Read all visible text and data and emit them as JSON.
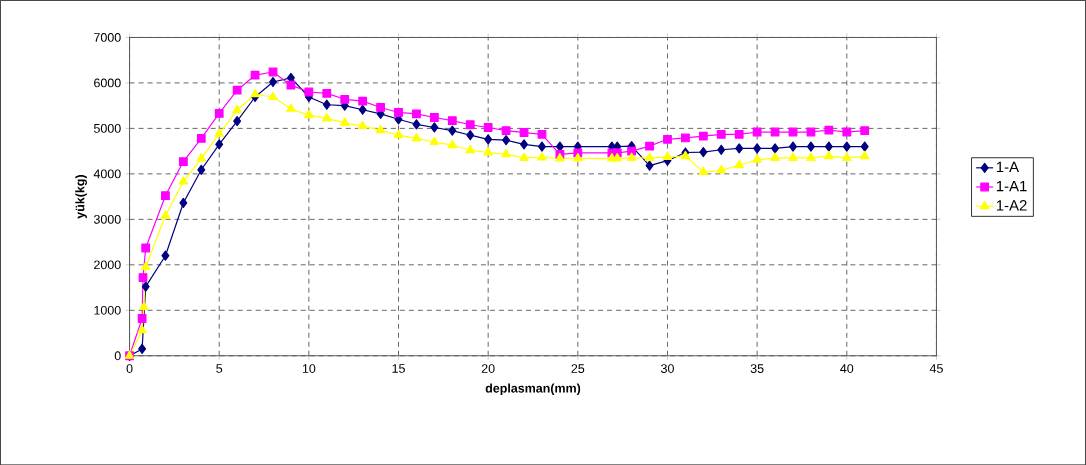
{
  "chart_data": {
    "type": "line",
    "xlabel": "deplasman(mm)",
    "ylabel": "yük(kg)",
    "xlim": [
      0,
      45
    ],
    "xticks": [
      0,
      5,
      10,
      15,
      20,
      25,
      30,
      35,
      40,
      45
    ],
    "ylim": [
      0,
      7000
    ],
    "yticks": [
      0,
      1000,
      2000,
      3000,
      4000,
      5000,
      6000,
      7000
    ],
    "grid": true,
    "legend": "right",
    "line_style": "solid",
    "series": [
      {
        "name": "1-A",
        "color": "#000080",
        "marker": "diamond",
        "x": [
          0,
          0.7,
          0.9,
          2,
          3,
          4,
          5,
          6,
          7,
          8,
          9,
          10,
          11,
          12,
          13,
          14,
          15,
          16,
          17,
          18,
          19,
          20,
          21,
          22,
          23,
          24,
          25,
          26.9,
          27.2,
          28,
          29,
          30,
          31,
          32,
          33,
          34,
          35,
          36,
          37,
          38,
          39,
          40,
          41
        ],
        "values": [
          0,
          150,
          1520,
          2200,
          3360,
          4090,
          4650,
          5160,
          5690,
          6020,
          6110,
          5690,
          5520,
          5500,
          5410,
          5320,
          5200,
          5090,
          5020,
          4950,
          4850,
          4760,
          4740,
          4650,
          4600,
          4600,
          4600,
          4600,
          4600,
          4610,
          4180,
          4290,
          4470,
          4480,
          4530,
          4560,
          4560,
          4560,
          4600,
          4600,
          4600,
          4600,
          4600
        ]
      },
      {
        "name": "1-A1",
        "color": "#ff00ff",
        "marker": "square",
        "x": [
          0,
          0.7,
          0.75,
          0.9,
          2,
          3,
          4,
          5,
          6,
          7,
          8,
          9,
          10,
          11,
          12,
          13,
          14,
          15,
          16,
          17,
          18,
          19,
          20,
          21,
          22,
          23,
          24,
          25,
          26.9,
          27.2,
          28,
          29,
          30,
          31,
          32,
          33,
          34,
          35,
          36,
          37,
          38,
          39,
          40,
          41
        ],
        "values": [
          0,
          820,
          1720,
          2370,
          3520,
          4270,
          4780,
          5330,
          5840,
          6170,
          6240,
          5950,
          5800,
          5770,
          5640,
          5600,
          5460,
          5350,
          5320,
          5240,
          5170,
          5080,
          5020,
          4950,
          4910,
          4870,
          4430,
          4460,
          4460,
          4460,
          4500,
          4610,
          4760,
          4790,
          4830,
          4870,
          4870,
          4920,
          4920,
          4920,
          4920,
          4960,
          4920,
          4950
        ]
      },
      {
        "name": "1-A2",
        "color": "#ffff00",
        "marker": "triangle",
        "x": [
          0,
          0.7,
          0.8,
          0.9,
          2,
          3,
          4,
          5,
          6,
          7,
          8,
          9,
          10,
          11,
          12,
          13,
          14,
          15,
          16,
          17,
          18,
          19,
          20,
          21,
          22,
          23,
          24,
          25,
          26.9,
          27.2,
          28,
          29,
          30,
          31,
          32,
          33,
          34,
          35,
          36,
          37,
          38,
          39,
          40,
          41
        ],
        "values": [
          0,
          560,
          1070,
          1950,
          3080,
          3830,
          4340,
          4880,
          5400,
          5750,
          5690,
          5430,
          5290,
          5220,
          5120,
          5050,
          4960,
          4850,
          4780,
          4700,
          4630,
          4520,
          4470,
          4430,
          4350,
          4360,
          4340,
          4340,
          4340,
          4340,
          4350,
          4350,
          4370,
          4390,
          4040,
          4080,
          4190,
          4310,
          4350,
          4350,
          4350,
          4390,
          4350,
          4390
        ]
      }
    ]
  }
}
